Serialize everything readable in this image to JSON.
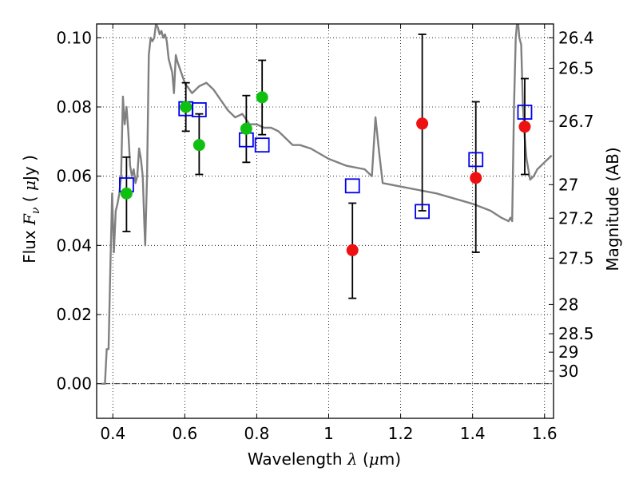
{
  "chart_data": {
    "type": "scatter",
    "xlabel": "Wavelength λ (μm)",
    "ylabel": "Flux F_ν ( μJy )",
    "y2label": "Magnitude (AB)",
    "xlim": [
      0.355,
      1.625
    ],
    "ylim": [
      -0.01,
      0.104
    ],
    "grid": true,
    "x_ticks": [
      0.4,
      0.6,
      0.8,
      1.0,
      1.2,
      1.4,
      1.6
    ],
    "x_tick_labels": [
      "0.4",
      "0.6",
      "0.8",
      "1",
      "1.2",
      "1.4",
      "1.6"
    ],
    "y_ticks": [
      0.0,
      0.02,
      0.04,
      0.06,
      0.08,
      0.1
    ],
    "y_tick_labels": [
      "0.00",
      "0.02",
      "0.04",
      "0.06",
      "0.08",
      "0.10"
    ],
    "y2_ticks": [
      {
        "mag": 26.4,
        "label": "26.4"
      },
      {
        "mag": 26.5,
        "label": "26.5"
      },
      {
        "mag": 26.7,
        "label": "26.7"
      },
      {
        "mag": 27.0,
        "label": "27"
      },
      {
        "mag": 27.2,
        "label": "27.2"
      },
      {
        "mag": 27.5,
        "label": "27.5"
      },
      {
        "mag": 28.0,
        "label": "28"
      },
      {
        "mag": 28.5,
        "label": "28.5"
      },
      {
        "mag": 29.0,
        "label": "29"
      },
      {
        "mag": 30.0,
        "label": "30"
      }
    ],
    "series": [
      {
        "kind": "model-sed",
        "color": "#808080",
        "x": [
          0.368,
          0.373,
          0.378,
          0.383,
          0.388,
          0.393,
          0.398,
          0.403,
          0.408,
          0.413,
          0.418,
          0.423,
          0.428,
          0.433,
          0.438,
          0.443,
          0.448,
          0.453,
          0.458,
          0.463,
          0.468,
          0.473,
          0.478,
          0.483,
          0.488,
          0.49,
          0.495,
          0.5,
          0.505,
          0.51,
          0.515,
          0.52,
          0.525,
          0.53,
          0.535,
          0.54,
          0.545,
          0.55,
          0.555,
          0.56,
          0.565,
          0.57,
          0.575,
          0.58,
          0.59,
          0.6,
          0.62,
          0.64,
          0.66,
          0.68,
          0.7,
          0.72,
          0.74,
          0.76,
          0.78,
          0.8,
          0.82,
          0.84,
          0.86,
          0.88,
          0.9,
          0.92,
          0.95,
          1.0,
          1.05,
          1.1,
          1.12,
          1.13,
          1.14,
          1.15,
          1.2,
          1.3,
          1.4,
          1.45,
          1.48,
          1.5,
          1.505,
          1.51,
          1.515,
          1.52,
          1.525,
          1.53,
          1.535,
          1.54,
          1.545,
          1.55,
          1.56,
          1.57,
          1.58,
          1.59,
          1.6,
          1.61,
          1.62
        ],
        "y": [
          0.0,
          0.0,
          0.0,
          0.01,
          0.01,
          0.033,
          0.055,
          0.038,
          0.05,
          0.052,
          0.055,
          0.06,
          0.083,
          0.075,
          0.08,
          0.073,
          0.063,
          0.06,
          0.062,
          0.058,
          0.06,
          0.068,
          0.065,
          0.06,
          0.045,
          0.04,
          0.06,
          0.095,
          0.1,
          0.099,
          0.1,
          0.104,
          0.103,
          0.101,
          0.102,
          0.1,
          0.101,
          0.099,
          0.094,
          0.092,
          0.09,
          0.084,
          0.095,
          0.093,
          0.09,
          0.087,
          0.084,
          0.086,
          0.087,
          0.085,
          0.082,
          0.079,
          0.077,
          0.078,
          0.075,
          0.075,
          0.074,
          0.074,
          0.073,
          0.071,
          0.069,
          0.069,
          0.068,
          0.065,
          0.063,
          0.062,
          0.06,
          0.077,
          0.067,
          0.058,
          0.057,
          0.055,
          0.052,
          0.05,
          0.048,
          0.047,
          0.048,
          0.047,
          0.08,
          0.1,
          0.106,
          0.1,
          0.098,
          0.08,
          0.071,
          0.065,
          0.059,
          0.06,
          0.062,
          0.063,
          0.064,
          0.065,
          0.066
        ]
      },
      {
        "kind": "model-bands",
        "color": "#0000ee",
        "marker": "square",
        "points": [
          [
            0.438,
            0.0575
          ],
          [
            0.603,
            0.0795
          ],
          [
            0.64,
            0.0792
          ],
          [
            0.771,
            0.0705
          ],
          [
            0.815,
            0.069
          ],
          [
            1.066,
            0.0572
          ],
          [
            1.26,
            0.0498
          ],
          [
            1.409,
            0.0648
          ],
          [
            1.545,
            0.0785
          ]
        ]
      },
      {
        "kind": "obs-optical",
        "color": "#10c010",
        "marker": "circle",
        "points": [
          {
            "x": 0.438,
            "y": 0.055,
            "err": [
              0.044,
              0.0655
            ]
          },
          {
            "x": 0.603,
            "y": 0.08,
            "err": [
              0.073,
              0.087
            ]
          },
          {
            "x": 0.64,
            "y": 0.069,
            "err": [
              0.0605,
              0.078
            ]
          },
          {
            "x": 0.771,
            "y": 0.0737,
            "err": [
              0.064,
              0.0833
            ]
          },
          {
            "x": 0.815,
            "y": 0.0828,
            "err": [
              0.072,
              0.0935
            ]
          }
        ]
      },
      {
        "kind": "obs-nir",
        "color": "#ee1111",
        "marker": "circle",
        "points": [
          {
            "x": 1.066,
            "y": 0.0386,
            "err": [
              0.0247,
              0.0522
            ]
          },
          {
            "x": 1.26,
            "y": 0.0752,
            "err": [
              0.05,
              0.101
            ]
          },
          {
            "x": 1.409,
            "y": 0.0595,
            "err": [
              0.038,
              0.0815
            ]
          },
          {
            "x": 1.545,
            "y": 0.0743,
            "err": [
              0.0605,
              0.0882
            ]
          }
        ]
      }
    ]
  }
}
